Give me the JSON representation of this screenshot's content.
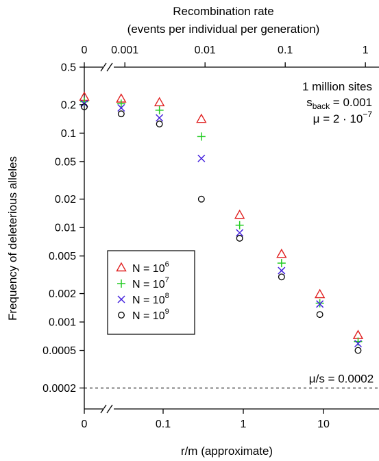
{
  "chart_data": {
    "type": "scatter",
    "title": "",
    "xlabel": "r/m (approximate)",
    "ylabel": "Frequency of deleterious alleles",
    "x_scale": "log (with axis break; first position is 0)",
    "y_scale": "log",
    "ylim": [
      0.00012,
      0.5
    ],
    "top_axis": {
      "label_line1": "Recombination rate",
      "label_line2": "(events per individual per generation)",
      "ticks": [
        "0",
        "0.001",
        "0.01",
        "0.1",
        "1"
      ]
    },
    "bottom_ticks": [
      "0",
      "0.1",
      "1",
      "10"
    ],
    "y_ticks": [
      "0.5",
      "0.2",
      "0.1",
      "0.05",
      "0.02",
      "0.01",
      "0.005",
      "0.002",
      "0.001",
      "0.0005",
      "0.0002"
    ],
    "x": [
      0,
      0.03,
      0.09,
      0.3,
      0.9,
      3,
      9,
      27
    ],
    "series": [
      {
        "name": "N = 10^6",
        "label": "N = 10",
        "exp": "6",
        "color": "#e02020",
        "marker": "triangle",
        "values": [
          0.24,
          0.23,
          0.21,
          0.14,
          0.0135,
          0.0052,
          0.00195,
          0.00072
        ]
      },
      {
        "name": "N = 10^7",
        "label": "N = 10",
        "exp": "7",
        "color": "#22cc22",
        "marker": "plus",
        "values": [
          0.215,
          0.205,
          0.175,
          0.092,
          0.0106,
          0.0042,
          0.00158,
          0.00062
        ]
      },
      {
        "name": "N = 10^8",
        "label": "N = 10",
        "exp": "8",
        "color": "#4422dd",
        "marker": "x",
        "values": [
          0.205,
          0.185,
          0.145,
          0.054,
          0.0088,
          0.0035,
          0.00155,
          0.00059
        ]
      },
      {
        "name": "N = 10^9",
        "label": "N = 10",
        "exp": "9",
        "color": "#000000",
        "marker": "circle",
        "values": [
          0.19,
          0.16,
          0.125,
          0.02,
          0.0077,
          0.003,
          0.0012,
          0.0005
        ]
      }
    ],
    "reference_line": {
      "y": 0.0002,
      "style": "dashed",
      "label": "μ/s  = 0.0002"
    },
    "annotations": {
      "sites": "1 million sites",
      "s_pre": "s",
      "s_sub": "back",
      "s_post": " = 0.001",
      "mu_pre": "μ  =  2 · 10",
      "mu_sup": "−7"
    },
    "legend_position": "left-middle"
  }
}
